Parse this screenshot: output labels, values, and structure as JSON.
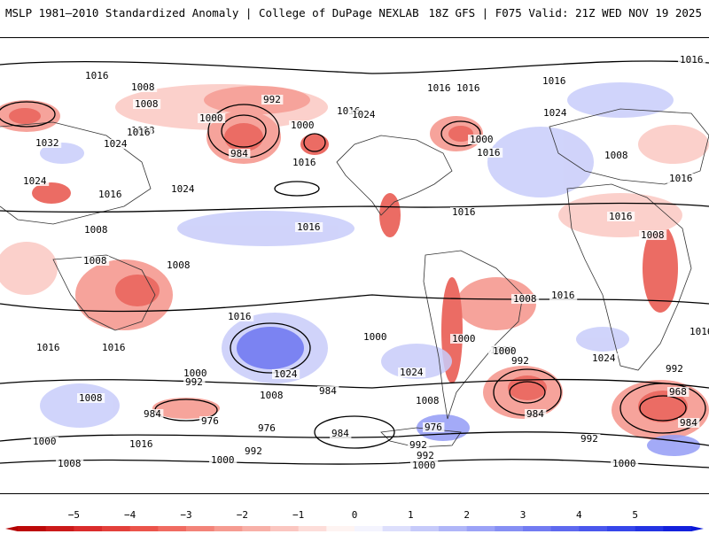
{
  "header": {
    "left_title": "MSLP 1981–2010 Standardized Anomaly | College of DuPage NEXLAB",
    "right_title": "18Z GFS | F075 Valid: 21Z WED NOV 19 2025"
  },
  "map": {
    "projection": "global cylindrical",
    "field": "mean sea level pressure anomaly with isobars",
    "isobar_labels": [
      "1016",
      "1008",
      "1008",
      "992",
      "1000",
      "1000",
      "984",
      "1008",
      "1016",
      "1032",
      "1024",
      "1024",
      "1024",
      "1016",
      "1016",
      "1008",
      "1016",
      "1016",
      "1016",
      "1016",
      "1024",
      "1000",
      "1016",
      "1024",
      "1008",
      "1016",
      "1016",
      "1016",
      "1008",
      "1008",
      "1000",
      "1016",
      "1008",
      "1016",
      "1016",
      "1024",
      "1024",
      "1000",
      "992",
      "984",
      "1000",
      "992",
      "1008",
      "1000",
      "1008",
      "984",
      "976",
      "984",
      "976",
      "984",
      "976",
      "1008",
      "1000",
      "1016",
      "992",
      "1008",
      "1000",
      "992",
      "992",
      "1000",
      "1000",
      "992",
      "968",
      "984",
      "992",
      "1000",
      "1016",
      "1016",
      "1024",
      "1008",
      "1016",
      "1016"
    ],
    "colors": {
      "coastline": "#000000",
      "negative": "#e8534a",
      "positive": "#5a6ef0"
    }
  },
  "colorbar": {
    "ticks": [
      "−5",
      "−4",
      "−3",
      "−2",
      "−1",
      "0",
      "1",
      "2",
      "3",
      "4",
      "5"
    ],
    "colors": [
      "#b40000",
      "#d92a2a",
      "#ee5a50",
      "#f5948a",
      "#fbc8c2",
      "#ffffff",
      "#c8ccfa",
      "#949cf6",
      "#646ef0",
      "#3444ea",
      "#0a18d8"
    ]
  }
}
